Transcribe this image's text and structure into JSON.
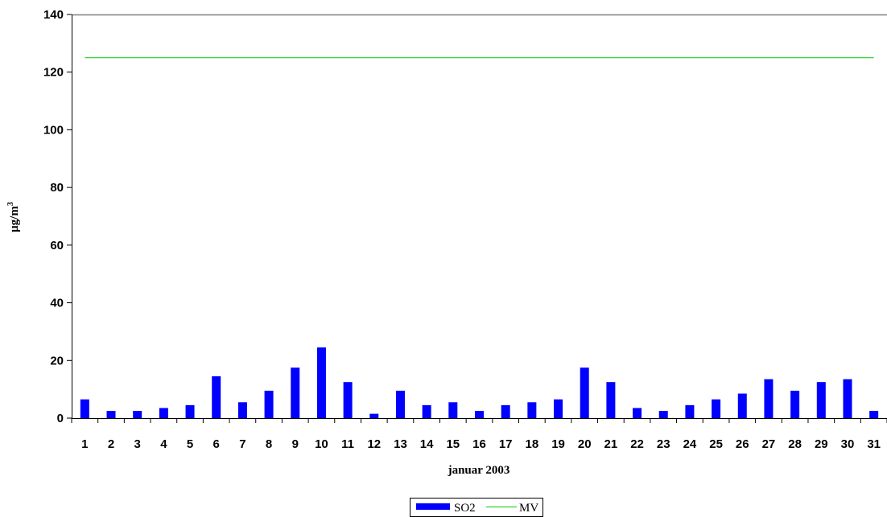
{
  "chart_data": {
    "type": "bar",
    "xlabel": "januar 2003",
    "ylabel": "μg/m",
    "ylabel_superscript": "3",
    "ylim": [
      0,
      140
    ],
    "yticks": [
      0,
      20,
      40,
      60,
      80,
      100,
      120,
      140
    ],
    "categories": [
      "1",
      "2",
      "3",
      "4",
      "5",
      "6",
      "7",
      "8",
      "9",
      "10",
      "11",
      "12",
      "13",
      "14",
      "15",
      "16",
      "17",
      "18",
      "19",
      "20",
      "21",
      "22",
      "23",
      "24",
      "25",
      "26",
      "27",
      "28",
      "29",
      "30",
      "31"
    ],
    "series": [
      {
        "name": "SO2",
        "kind": "bar",
        "color": "#0000ff",
        "values": [
          6.5,
          2.5,
          2.5,
          3.5,
          4.5,
          14.5,
          5.5,
          9.5,
          17.5,
          24.5,
          12.5,
          1.5,
          9.5,
          4.5,
          5.5,
          2.5,
          4.5,
          5.5,
          6.5,
          17.5,
          12.5,
          3.5,
          2.5,
          4.5,
          6.5,
          8.5,
          13.5,
          9.5,
          12.5,
          13.5,
          2.5
        ]
      },
      {
        "name": "MV",
        "kind": "line",
        "color": "#00cc00",
        "value": 125
      }
    ],
    "grid": false,
    "legend": "bottom-center"
  }
}
